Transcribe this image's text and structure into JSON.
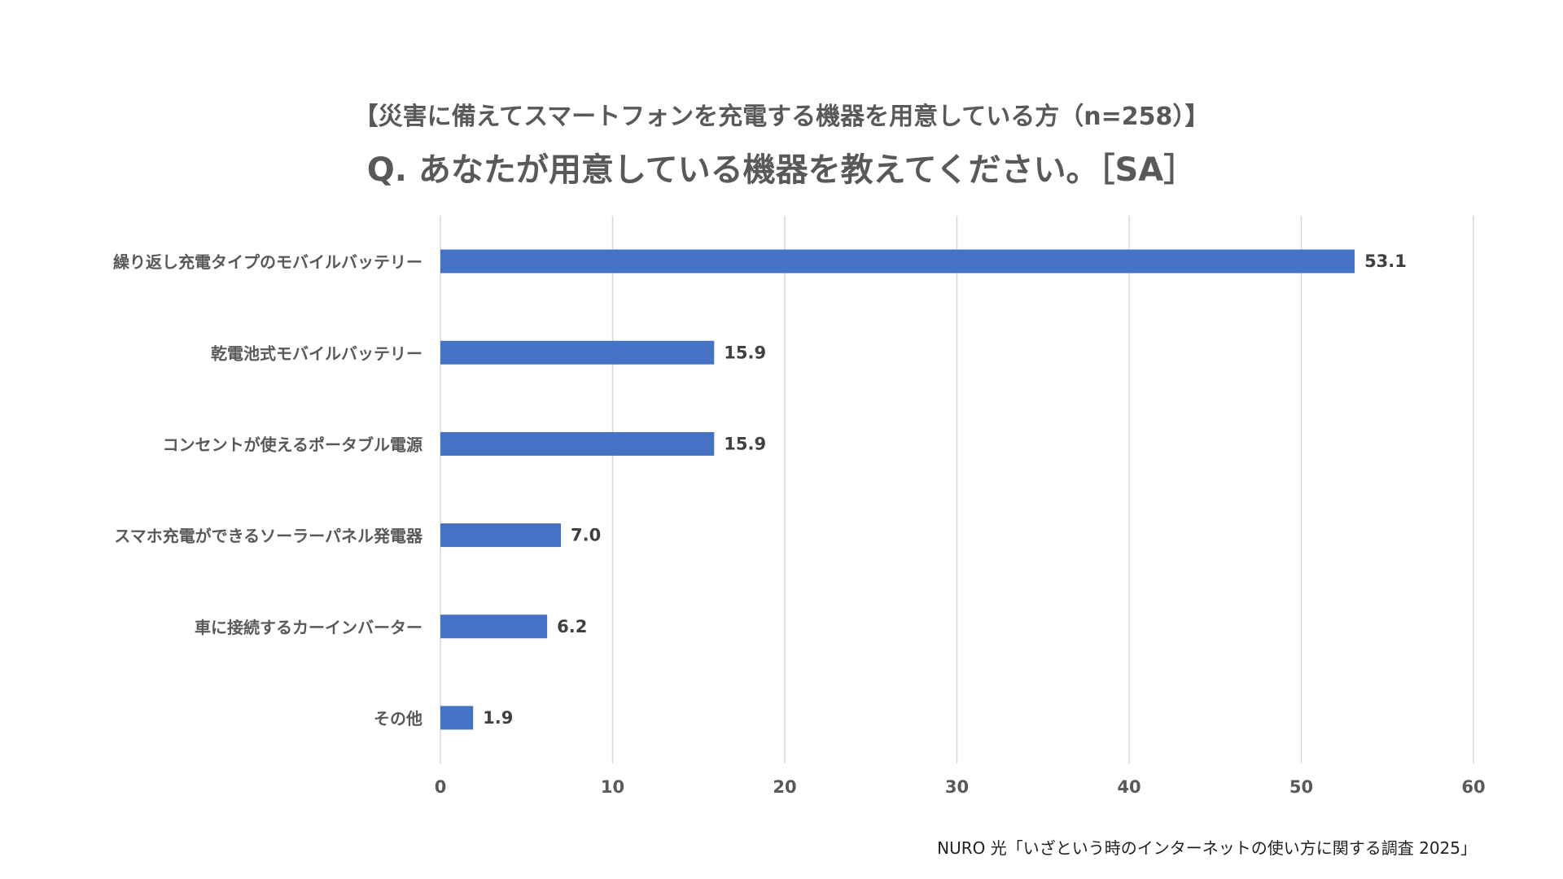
{
  "chart_data": {
    "type": "bar",
    "orientation": "horizontal",
    "title": "【災害に備えてスマートフォンを充電する機器を用意している方（n=258）】",
    "subtitle": "Q. あなたが用意している機器を教えてください。［SA］",
    "categories": [
      "繰り返し充電タイプのモバイルバッテリー",
      "乾電池式モバイルバッテリー",
      "コンセントが使えるポータブル電源",
      "スマホ充電ができるソーラーパネル発電器",
      "車に接続するカーインバーター",
      "その他"
    ],
    "values": [
      53.1,
      15.9,
      15.9,
      7.0,
      6.2,
      1.9
    ],
    "value_labels": [
      "53.1",
      "15.9",
      "15.9",
      "7.0",
      "6.2",
      "1.9"
    ],
    "xlim": [
      0,
      60
    ],
    "x_ticks": [
      0,
      10,
      20,
      30,
      40,
      50,
      60
    ],
    "x_tick_labels": [
      "0",
      "10",
      "20",
      "30",
      "40",
      "50",
      "60"
    ],
    "grid": "vertical",
    "legend": "none",
    "bar_color": "#4472C4",
    "grid_color": "#D9D9D9"
  },
  "source_note": "NURO 光「いざという時のインターネットの使い方に関する調査 2025」"
}
